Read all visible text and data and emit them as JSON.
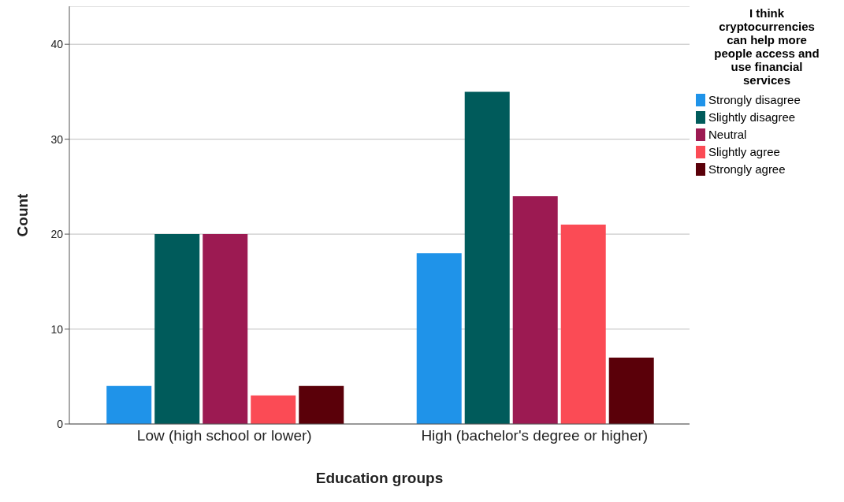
{
  "chart_data": {
    "type": "bar",
    "xlabel": "Education groups",
    "ylabel": "Count",
    "legend_title": "I think cryptocurrencies can help more people access and use financial services",
    "categories": [
      "Low (high school or lower)",
      "High (bachelor's degree or higher)"
    ],
    "series": [
      {
        "name": "Strongly disagree",
        "color": "#1f93e9",
        "values": [
          4,
          18
        ]
      },
      {
        "name": "Slightly disagree",
        "color": "#005b5b",
        "values": [
          20,
          35
        ]
      },
      {
        "name": "Neutral",
        "color": "#9c1a52",
        "values": [
          20,
          24
        ]
      },
      {
        "name": "Slightly agree",
        "color": "#fb4b55",
        "values": [
          3,
          21
        ]
      },
      {
        "name": "Strongly agree",
        "color": "#5a0009",
        "values": [
          4,
          7
        ]
      }
    ],
    "ylim": [
      0,
      44
    ],
    "yticks": [
      0,
      10,
      20,
      30,
      40
    ],
    "grid": "y",
    "legend": "top right"
  }
}
